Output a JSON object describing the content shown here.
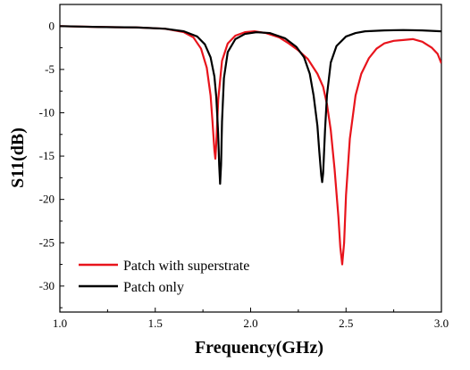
{
  "chart_data": {
    "type": "line",
    "xlabel": "Frequency(GHz)",
    "ylabel": "S11(dB)",
    "xlim": [
      1.0,
      3.0
    ],
    "ylim": [
      -33,
      2.5
    ],
    "x_ticks": [
      1.0,
      1.5,
      2.0,
      2.5,
      3.0
    ],
    "x_tick_labels": [
      "1.0",
      "1.5",
      "2.0",
      "2.5",
      "3.0"
    ],
    "y_ticks": [
      0,
      -5,
      -10,
      -15,
      -20,
      -25,
      -30
    ],
    "y_tick_labels": [
      "0",
      "-5",
      "-10",
      "-15",
      "-20",
      "-25",
      "-30"
    ],
    "grid": false,
    "legend_position": "bottom-left",
    "series": [
      {
        "name": "Patch with superstrate",
        "color": "#e8141c",
        "x": [
          1.0,
          1.2,
          1.4,
          1.55,
          1.65,
          1.7,
          1.74,
          1.77,
          1.79,
          1.8,
          1.81,
          1.815,
          1.82,
          1.83,
          1.85,
          1.88,
          1.92,
          1.97,
          2.02,
          2.08,
          2.15,
          2.2,
          2.25,
          2.3,
          2.35,
          2.38,
          2.4,
          2.42,
          2.44,
          2.46,
          2.47,
          2.48,
          2.49,
          2.5,
          2.52,
          2.55,
          2.58,
          2.62,
          2.66,
          2.7,
          2.75,
          2.8,
          2.85,
          2.9,
          2.95,
          2.98,
          3.0
        ],
        "y": [
          0,
          -0.1,
          -0.15,
          -0.3,
          -0.7,
          -1.3,
          -2.6,
          -4.8,
          -8.0,
          -11.0,
          -14.3,
          -15.3,
          -13.5,
          -8.5,
          -4.0,
          -2.0,
          -1.1,
          -0.7,
          -0.6,
          -0.8,
          -1.3,
          -2.0,
          -2.8,
          -3.8,
          -5.5,
          -7.0,
          -9.0,
          -12.0,
          -16.5,
          -22.0,
          -25.5,
          -27.5,
          -25.0,
          -19.5,
          -13.0,
          -8.0,
          -5.5,
          -3.7,
          -2.6,
          -2.0,
          -1.7,
          -1.6,
          -1.5,
          -1.8,
          -2.5,
          -3.2,
          -4.3
        ]
      },
      {
        "name": "Patch only",
        "color": "#000000",
        "x": [
          1.0,
          1.2,
          1.4,
          1.55,
          1.65,
          1.72,
          1.76,
          1.79,
          1.81,
          1.82,
          1.83,
          1.835,
          1.84,
          1.845,
          1.85,
          1.86,
          1.88,
          1.92,
          1.97,
          2.03,
          2.1,
          2.18,
          2.24,
          2.28,
          2.31,
          2.33,
          2.35,
          2.36,
          2.37,
          2.375,
          2.38,
          2.39,
          2.4,
          2.42,
          2.45,
          2.5,
          2.55,
          2.6,
          2.7,
          2.8,
          2.9,
          3.0
        ],
        "y": [
          0,
          -0.1,
          -0.15,
          -0.3,
          -0.6,
          -1.2,
          -2.1,
          -3.6,
          -5.8,
          -8.2,
          -12.5,
          -16.0,
          -18.2,
          -16.0,
          -11.0,
          -6.0,
          -3.0,
          -1.5,
          -0.9,
          -0.7,
          -0.8,
          -1.4,
          -2.4,
          -3.6,
          -5.5,
          -8.0,
          -11.5,
          -14.5,
          -17.2,
          -18.0,
          -17.0,
          -12.0,
          -8.0,
          -4.2,
          -2.3,
          -1.2,
          -0.8,
          -0.6,
          -0.5,
          -0.45,
          -0.5,
          -0.6
        ]
      }
    ]
  }
}
